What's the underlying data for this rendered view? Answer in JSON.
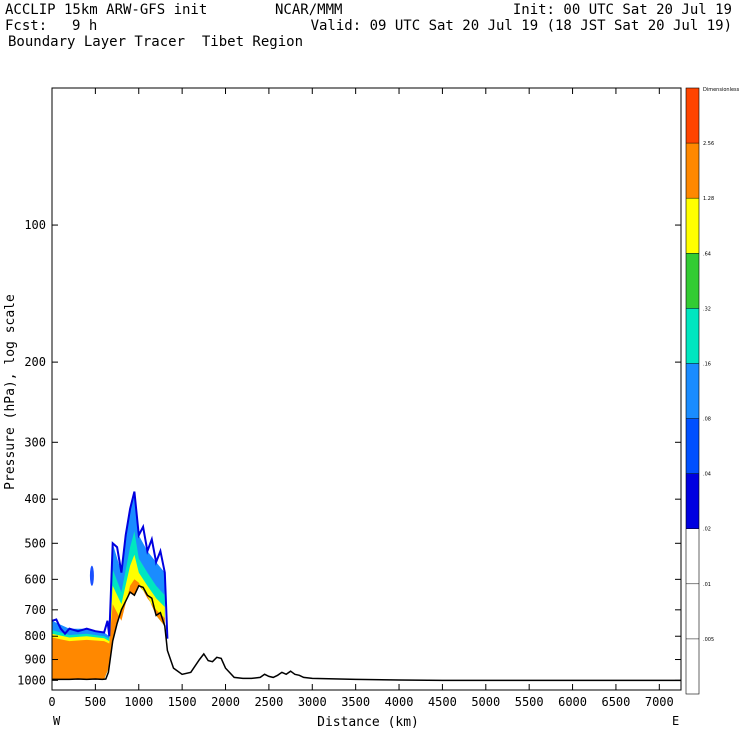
{
  "header": {
    "model": "ACCLIP 15km ARW-GFS init",
    "center": "NCAR/MMM",
    "init": "Init: 00 UTC Sat 20 Jul 19",
    "fcst_label": "Fcst:",
    "fcst_value": "9 h",
    "valid": "Valid: 09 UTC Sat 20 Jul 19 (18 JST Sat 20 Jul 19)",
    "field": "Boundary Layer Tracer  Tibet Region"
  },
  "chart_data": {
    "type": "area",
    "xlabel": "Distance (km)",
    "ylabel": "Pressure (hPa), log scale",
    "xlim": [
      0,
      7250
    ],
    "ylim": [
      1050,
      50
    ],
    "y_scale": "log",
    "x_ticks": [
      0,
      500,
      1000,
      1500,
      2000,
      2500,
      3000,
      3500,
      4000,
      4500,
      5000,
      5500,
      6000,
      6500,
      7000
    ],
    "y_ticks": [
      100,
      200,
      300,
      400,
      500,
      600,
      700,
      800,
      900,
      1000
    ],
    "x_end_labels": {
      "left": "W",
      "right": "E"
    },
    "colorbar": {
      "title": "Dimensionless",
      "labels": [
        "2.56",
        "1.28",
        ".64",
        ".32",
        ".16",
        ".08",
        ".04",
        ".02",
        ".01",
        ".005"
      ],
      "colors": [
        "#ff4400",
        "#ff8800",
        "#ffff00",
        "#33cc33",
        "#00e6c0",
        "#1a8cff",
        "#0050ff",
        "#0000e0",
        "#ffffff",
        "#ffffff"
      ]
    },
    "terrain": {
      "distance_km": [
        0,
        100,
        200,
        300,
        400,
        500,
        580,
        620,
        650,
        700,
        750,
        800,
        850,
        900,
        950,
        1000,
        1050,
        1100,
        1150,
        1200,
        1250,
        1300,
        1330,
        1400,
        1500,
        1600,
        1700,
        1750,
        1800,
        1850,
        1900,
        1950,
        2000,
        2100,
        2200,
        2300,
        2400,
        2450,
        2500,
        2550,
        2600,
        2650,
        2700,
        2750,
        2800,
        2850,
        2900,
        3000,
        3500,
        4000,
        4500,
        5000,
        5500,
        6000,
        6500,
        7000,
        7250
      ],
      "pressure_hpa": [
        995,
        995,
        995,
        993,
        995,
        993,
        995,
        993,
        960,
        820,
        750,
        700,
        670,
        640,
        650,
        620,
        625,
        650,
        660,
        720,
        710,
        760,
        860,
        940,
        970,
        960,
        900,
        875,
        905,
        910,
        890,
        895,
        940,
        985,
        990,
        990,
        985,
        970,
        980,
        985,
        975,
        960,
        970,
        955,
        970,
        975,
        985,
        990,
        995,
        998,
        1000,
        1000,
        1000,
        1000,
        1000,
        1000,
        1000
      ]
    },
    "tracer_top": {
      "distance_km": [
        0,
        50,
        100,
        150,
        200,
        300,
        400,
        500,
        600,
        640,
        660,
        700,
        750,
        800,
        850,
        900,
        950,
        1000,
        1050,
        1100,
        1150,
        1200,
        1250,
        1300,
        1330
      ],
      "pressure_hpa": [
        740,
        735,
        770,
        790,
        770,
        780,
        770,
        780,
        785,
        740,
        800,
        500,
        510,
        580,
        480,
        420,
        385,
        480,
        460,
        520,
        490,
        550,
        520,
        580,
        810
      ]
    },
    "tracer_regions": [
      {
        "level": ".01",
        "x": [
          0,
          200,
          400,
          600,
          660,
          700,
          800,
          900,
          950,
          1000,
          1100,
          1200,
          1300
        ],
        "p": [
          740,
          770,
          770,
          785,
          800,
          500,
          580,
          420,
          385,
          480,
          520,
          550,
          580
        ]
      },
      {
        "level": ".16",
        "x": [
          0,
          200,
          400,
          600,
          660,
          700,
          800,
          900,
          950,
          1000,
          1100,
          1200,
          1300
        ],
        "p": [
          775,
          795,
          790,
          800,
          810,
          570,
          640,
          510,
          470,
          540,
          580,
          620,
          650
        ]
      },
      {
        "level": ".32",
        "x": [
          0,
          200,
          400,
          600,
          660,
          700,
          800,
          900,
          950,
          1000,
          1100,
          1200,
          1300
        ],
        "p": [
          790,
          805,
          800,
          808,
          820,
          620,
          680,
          560,
          530,
          580,
          620,
          660,
          690
        ]
      },
      {
        "level": "1.28",
        "x": [
          0,
          200,
          400,
          600,
          660,
          700,
          800,
          900,
          950,
          1000,
          1100,
          1200,
          1300
        ],
        "p": [
          805,
          820,
          815,
          820,
          830,
          680,
          740,
          620,
          600,
          610,
          660,
          700,
          730
        ]
      }
    ],
    "isolated_blob": {
      "distance_km": 460,
      "pressure_hpa": [
        560,
        620
      ]
    }
  }
}
